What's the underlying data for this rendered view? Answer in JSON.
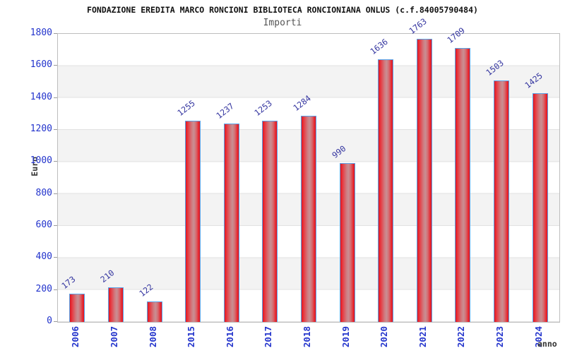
{
  "chart_data": {
    "type": "bar",
    "title": "FONDAZIONE EREDITA MARCO RONCIONI BIBLIOTECA RONCIONIANA ONLUS (c.f.84005790484)",
    "subtitle": "Importi",
    "categories": [
      "2006",
      "2007",
      "2008",
      "2015",
      "2016",
      "2017",
      "2018",
      "2019",
      "2020",
      "2021",
      "2022",
      "2023",
      "2024"
    ],
    "values": [
      173,
      210,
      122,
      1255,
      1237,
      1253,
      1284,
      990,
      1636,
      1763,
      1709,
      1503,
      1425
    ],
    "xlabel": "anno",
    "ylabel": "Euro",
    "ylim": [
      0,
      1800
    ],
    "ytick_step": 200,
    "yticks": [
      0,
      200,
      400,
      600,
      800,
      1000,
      1200,
      1400,
      1600,
      1800
    ],
    "legend": "none",
    "grid": "horizontal gridlines with alternating gray/white bands every 200",
    "bar_label_rotation_deg": -38,
    "x_label_rotation_deg": -90,
    "colors": {
      "bar_fill_edge": "#e2151f",
      "bar_fill_center": "#c98f93",
      "bar_border": "#58a2e8",
      "axis_tick_label": "#2233cc",
      "value_label": "#3536a0",
      "band_gray": "#f3f3f3",
      "gridline": "#e2e2e2",
      "plot_border": "#bdbdbd",
      "title_color": "#111111",
      "subtitle_color": "#555555",
      "axis_title_color": "#333333",
      "background": "#ffffff"
    }
  }
}
